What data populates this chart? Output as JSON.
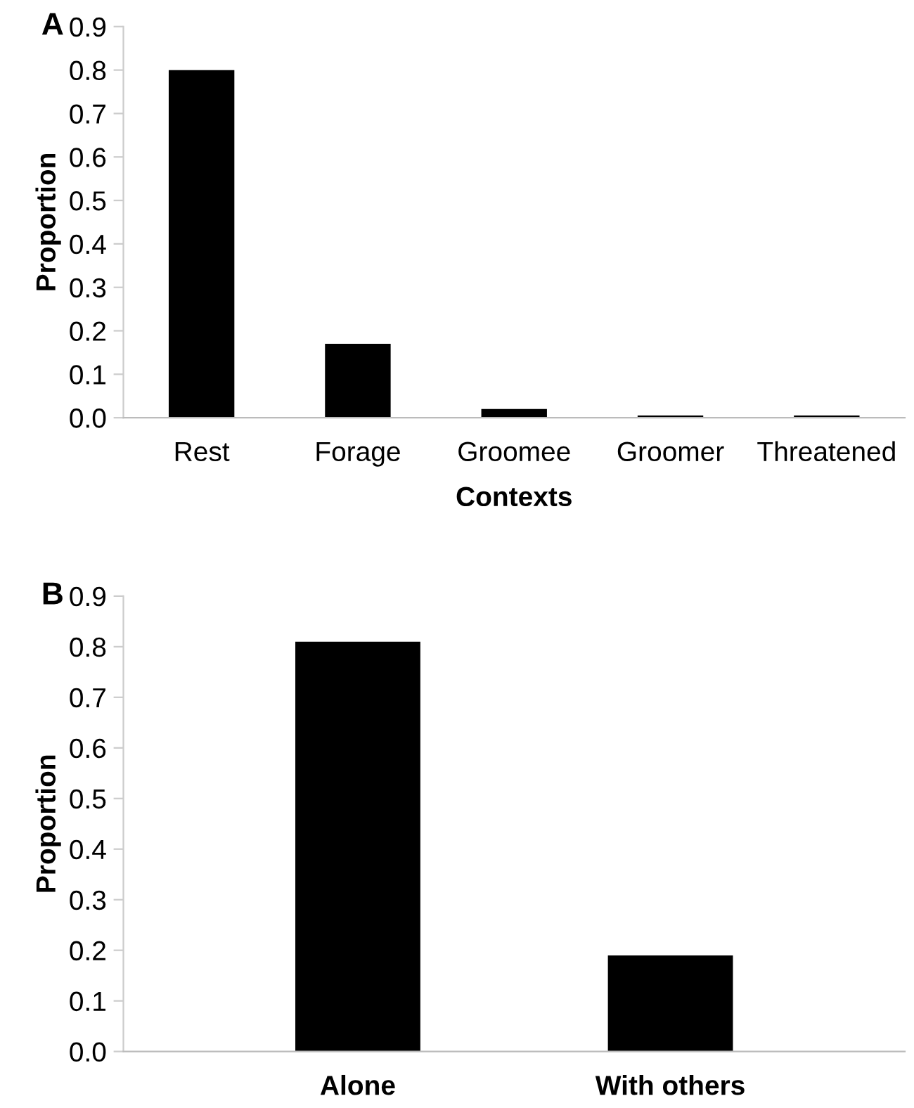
{
  "chart_data": [
    {
      "type": "bar",
      "annotations": [
        "A"
      ],
      "xlabel": "Contexts",
      "ylabel": "Proportion",
      "categories": [
        "Rest",
        "Forage",
        "Groomee",
        "Groomer",
        "Threatened"
      ],
      "values": [
        0.8,
        0.17,
        0.02,
        0.005,
        0.005
      ],
      "color": "#000000",
      "ylim": [
        0,
        0.9
      ],
      "yticks": [
        {
          "value": 0,
          "label": "0.0"
        },
        0.1,
        0.2,
        0.3,
        0.4,
        0.5,
        0.6,
        0.7,
        0.8,
        0.9
      ],
      "grid": false,
      "legend": false
    },
    {
      "type": "bar",
      "annotations": [
        "B"
      ],
      "ylabel": "Proportion",
      "categories": [
        "Alone",
        "With others"
      ],
      "values": [
        0.81,
        0.19
      ],
      "color": "#000000",
      "ylim": [
        0,
        0.9
      ],
      "yticks": [
        {
          "value": 0,
          "label": "0.0"
        },
        0.1,
        0.2,
        0.3,
        0.4,
        0.5,
        0.6,
        0.7,
        0.8,
        0.9
      ],
      "grid": false,
      "legend": false
    }
  ]
}
